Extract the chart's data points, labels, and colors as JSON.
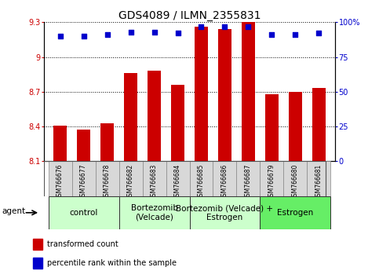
{
  "title": "GDS4089 / ILMN_2355831",
  "samples": [
    "GSM766676",
    "GSM766677",
    "GSM766678",
    "GSM766682",
    "GSM766683",
    "GSM766684",
    "GSM766685",
    "GSM766686",
    "GSM766687",
    "GSM766679",
    "GSM766680",
    "GSM766681"
  ],
  "bar_values": [
    8.41,
    8.37,
    8.43,
    8.86,
    8.88,
    8.76,
    9.26,
    9.24,
    9.3,
    8.68,
    8.7,
    8.73
  ],
  "percentile_values": [
    90,
    90,
    91,
    93,
    93,
    92,
    97,
    97,
    97,
    91,
    91,
    92
  ],
  "ylim_left": [
    8.1,
    9.3
  ],
  "ylim_right": [
    0,
    100
  ],
  "yticks_left": [
    8.1,
    8.4,
    8.7,
    9.0,
    9.3
  ],
  "ytick_labels_left": [
    "8.1",
    "8.4",
    "8.7",
    "9",
    "9.3"
  ],
  "yticks_right": [
    0,
    25,
    50,
    75,
    100
  ],
  "ytick_labels_right": [
    "0",
    "25",
    "50",
    "75",
    "100%"
  ],
  "groups": [
    {
      "label": "control",
      "start": 0,
      "end": 3,
      "color": "#ccffcc"
    },
    {
      "label": "Bortezomib\n(Velcade)",
      "start": 3,
      "end": 6,
      "color": "#ccffcc"
    },
    {
      "label": "Bortezomib (Velcade) +\nEstrogen",
      "start": 6,
      "end": 9,
      "color": "#ccffcc"
    },
    {
      "label": "Estrogen",
      "start": 9,
      "end": 12,
      "color": "#66ee66"
    }
  ],
  "bar_color": "#cc0000",
  "dot_color": "#0000cc",
  "bar_bottom": 8.1,
  "agent_label": "agent",
  "legend_bar_label": "transformed count",
  "legend_dot_label": "percentile rank within the sample",
  "tick_label_color_left": "#cc0000",
  "tick_label_color_right": "#0000cc",
  "font_size_title": 10,
  "font_size_ticks": 7,
  "font_size_xticks": 5.5,
  "font_size_group": 7.5,
  "font_size_legend": 7,
  "font_size_agent": 7.5
}
